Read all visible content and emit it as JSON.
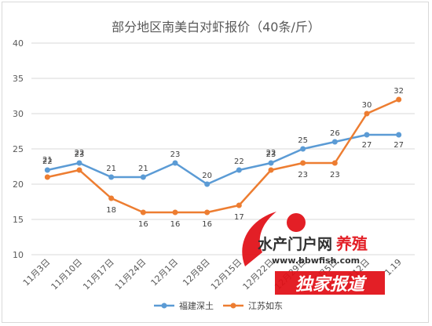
{
  "chart_data": {
    "type": "line",
    "title": "部分地区南美白对虾报价（40条/斤）",
    "categories": [
      "11月3日",
      "11月10日",
      "11月17日",
      "11月24日",
      "12月1日",
      "12月8日",
      "12月15日",
      "12月22日",
      "12月29日",
      "1月5日",
      "1月12日",
      "1.19"
    ],
    "ylim": [
      10,
      40
    ],
    "yticks": [
      10,
      15,
      20,
      25,
      30,
      35,
      40
    ],
    "grid": true,
    "legend_position": "bottom",
    "series": [
      {
        "name": "福建深土",
        "color": "#5b9bd5",
        "values": [
          22,
          23,
          21,
          21,
          23,
          20,
          22,
          23,
          25,
          26,
          27,
          27
        ]
      },
      {
        "name": "江苏如东",
        "color": "#ed7d31",
        "values": [
          21,
          22,
          18,
          16,
          16,
          16,
          17,
          22,
          23,
          23,
          30,
          32
        ]
      }
    ]
  },
  "watermark": {
    "brand_main": "水产门户网",
    "brand_accent": "养殖",
    "url": "www.bbwfish.com",
    "banner": "独家报道"
  }
}
